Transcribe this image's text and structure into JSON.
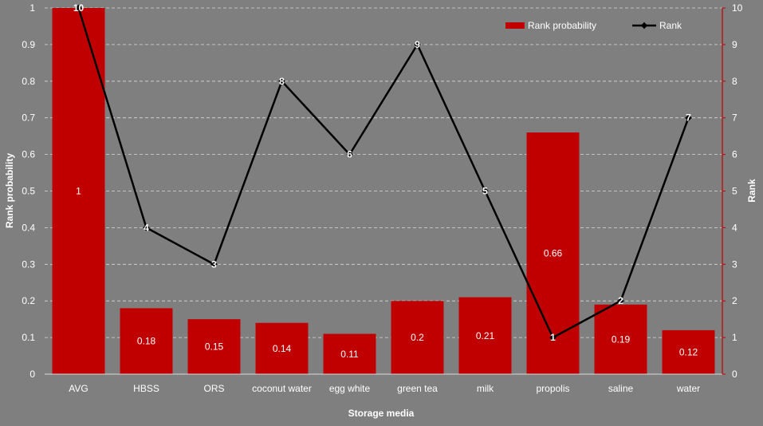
{
  "chart_data": {
    "type": "bar",
    "categories": [
      "AVG",
      "HBSS",
      "ORS",
      "coconut water",
      "egg white",
      "green tea",
      "milk",
      "propolis",
      "saline",
      "water"
    ],
    "series": [
      {
        "name": "Rank probability",
        "type": "bar",
        "axis": "left",
        "color": "#c00000",
        "values": [
          1,
          0.18,
          0.15,
          0.14,
          0.11,
          0.2,
          0.21,
          0.66,
          0.19,
          0.12
        ],
        "value_labels": [
          "1",
          "0.18",
          "0.15",
          "0.14",
          "0.11",
          "0.2",
          "0.21",
          "0.66",
          "0.19",
          "0.12"
        ]
      },
      {
        "name": "Rank",
        "type": "line",
        "axis": "right",
        "color": "#000000",
        "values": [
          10,
          4,
          3,
          8,
          6,
          9,
          5,
          1,
          2,
          7
        ],
        "value_labels": [
          "10",
          "4",
          "3",
          "8",
          "6",
          "9",
          "5",
          "1",
          "2",
          "7"
        ]
      }
    ],
    "xlabel": "Storage media",
    "ylabel": "Rank probability",
    "y2label": "Rank",
    "ylim": [
      0,
      1
    ],
    "y2lim": [
      0,
      10
    ],
    "yticks": [
      "0",
      "0.1",
      "0.2",
      "0.3",
      "0.4",
      "0.5",
      "0.6",
      "0.7",
      "0.8",
      "0.9",
      "1"
    ],
    "y2ticks": [
      "0",
      "1",
      "2",
      "3",
      "4",
      "5",
      "6",
      "7",
      "8",
      "9",
      "10"
    ],
    "grid": true,
    "legend_position": "top-right",
    "colors": {
      "background": "#7f7f7f",
      "bar": "#c00000",
      "line": "#000000",
      "right_axis": "#c00000",
      "text": "#ffffff",
      "gridline": "#d9d9d9"
    }
  }
}
